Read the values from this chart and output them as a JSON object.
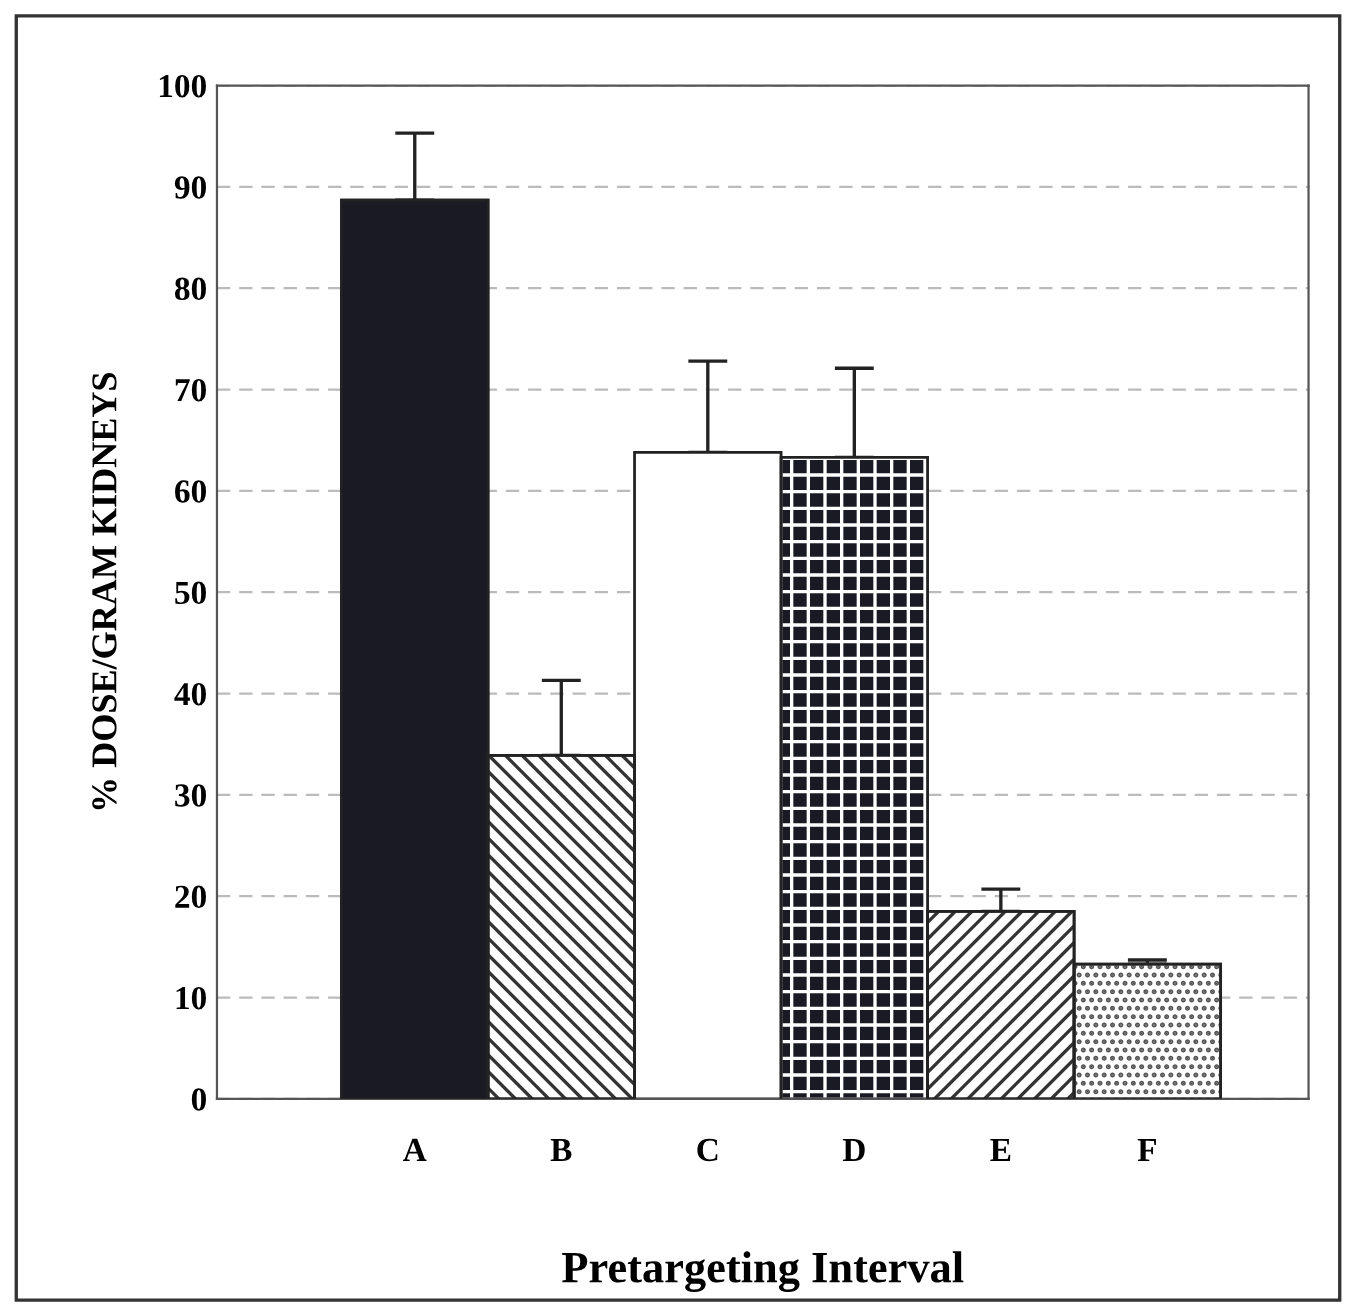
{
  "chart_data": {
    "type": "bar",
    "xlabel": "Pretargeting Interval",
    "ylabel": "% DOSE/GRAM KIDNEYS",
    "categories": [
      "A",
      "B",
      "C",
      "D",
      "E",
      "F"
    ],
    "values": [
      88.7,
      33.9,
      63.8,
      63.3,
      18.5,
      13.3
    ],
    "errors": [
      [
        88.7,
        95.3
      ],
      [
        33.9,
        41.3
      ],
      [
        63.8,
        72.8
      ],
      [
        63.3,
        72.1
      ],
      [
        18.5,
        20.7
      ],
      [
        13.3,
        13.7
      ]
    ],
    "colors": [
      "#1a1a24",
      "#333333",
      "#ffffff",
      "#1a1a24",
      "#333333",
      "#555555"
    ],
    "ylim": [
      0,
      100
    ],
    "yticks": [
      0,
      10,
      20,
      30,
      40,
      50,
      60,
      70,
      80,
      90,
      100
    ],
    "grid": "y",
    "legend": false
  }
}
